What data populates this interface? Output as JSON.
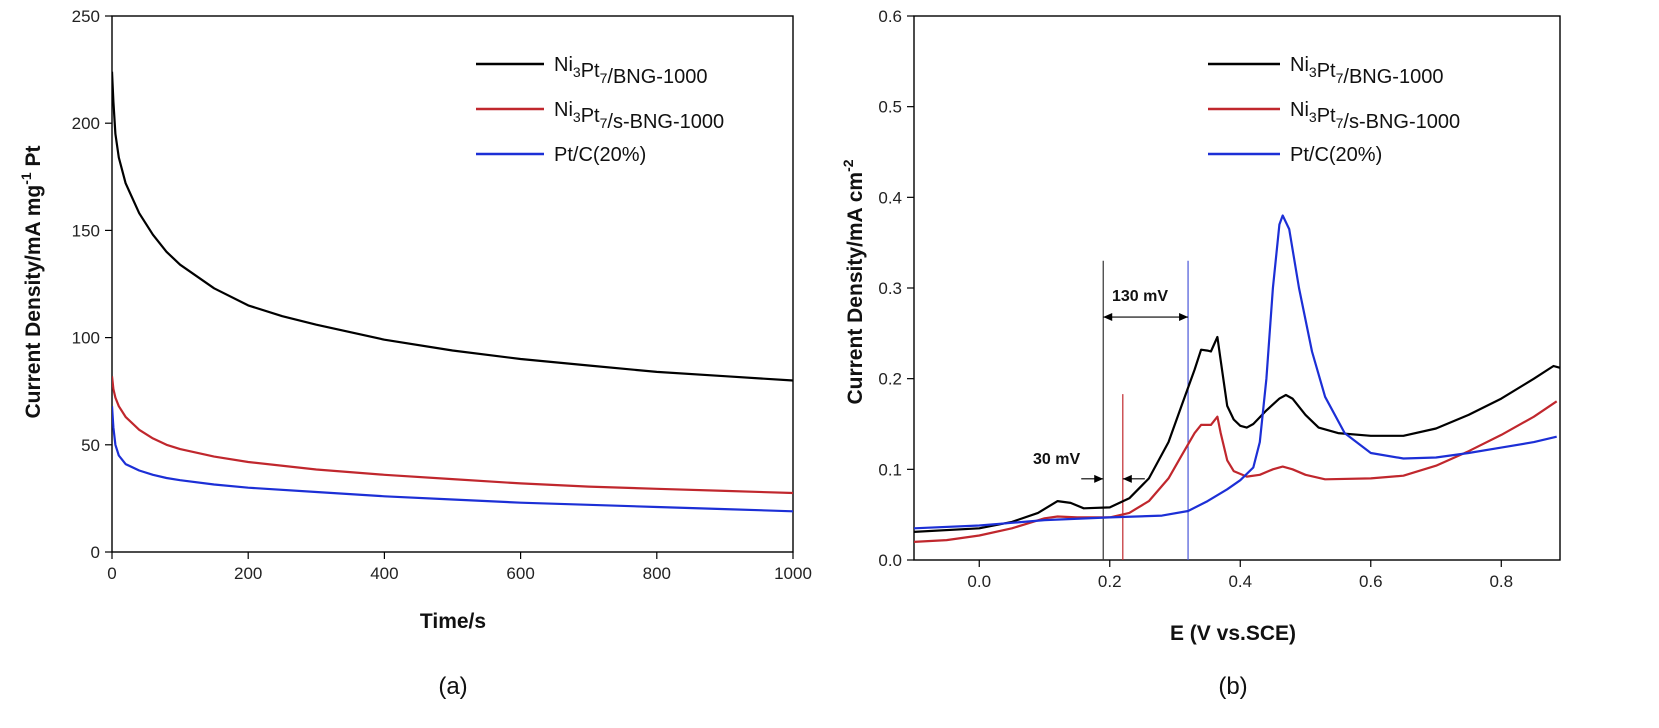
{
  "chart_data": [
    {
      "panel_label": "(a)",
      "type": "line",
      "xlabel": "Time/s",
      "ylabel": "Current Density/mA mg",
      "ylabel_sup": "-1",
      "ylabel_tail": " Pt",
      "xlim": [
        0,
        1000
      ],
      "ylim": [
        0,
        250
      ],
      "xticks": [
        0,
        200,
        400,
        600,
        800,
        1000
      ],
      "yticks": [
        0,
        50,
        100,
        150,
        200,
        250
      ],
      "grid": false,
      "legend_position": "top-right",
      "series": [
        {
          "name": "Ni3Pt7/BNG-1000",
          "label_parts": [
            [
              "Ni",
              ""
            ],
            [
              "3",
              "sub"
            ],
            [
              "Pt",
              ""
            ],
            [
              "7",
              "sub"
            ],
            [
              "/BNG-1000",
              ""
            ]
          ],
          "color": "#000000",
          "points": [
            [
              0,
              224
            ],
            [
              2,
              210
            ],
            [
              5,
              195
            ],
            [
              10,
              184
            ],
            [
              20,
              172
            ],
            [
              40,
              158
            ],
            [
              60,
              148
            ],
            [
              80,
              140
            ],
            [
              100,
              134
            ],
            [
              150,
              123
            ],
            [
              200,
              115
            ],
            [
              250,
              110
            ],
            [
              300,
              106
            ],
            [
              400,
              99
            ],
            [
              500,
              94
            ],
            [
              600,
              90
            ],
            [
              700,
              87
            ],
            [
              800,
              84
            ],
            [
              900,
              82
            ],
            [
              1000,
              80
            ]
          ]
        },
        {
          "name": "Ni3Pt7/s-BNG-1000",
          "label_parts": [
            [
              "Ni",
              ""
            ],
            [
              "3",
              "sub"
            ],
            [
              "Pt",
              ""
            ],
            [
              "7",
              "sub"
            ],
            [
              "/s-BNG-1000",
              ""
            ]
          ],
          "color": "#c0272d",
          "points": [
            [
              0,
              82
            ],
            [
              2,
              76
            ],
            [
              5,
              72
            ],
            [
              10,
              68
            ],
            [
              20,
              63
            ],
            [
              40,
              57
            ],
            [
              60,
              53
            ],
            [
              80,
              50
            ],
            [
              100,
              48
            ],
            [
              150,
              44.5
            ],
            [
              200,
              42
            ],
            [
              300,
              38.5
            ],
            [
              400,
              36
            ],
            [
              500,
              34
            ],
            [
              600,
              32
            ],
            [
              700,
              30.5
            ],
            [
              800,
              29.5
            ],
            [
              900,
              28.5
            ],
            [
              1000,
              27.5
            ]
          ]
        },
        {
          "name": "Pt/C(20%)",
          "label_parts": [
            [
              "Pt/C(20%)",
              ""
            ]
          ],
          "color": "#1c2fd6",
          "points": [
            [
              0,
              68
            ],
            [
              2,
              58
            ],
            [
              5,
              50
            ],
            [
              10,
              45
            ],
            [
              20,
              41
            ],
            [
              40,
              38
            ],
            [
              60,
              36
            ],
            [
              80,
              34.5
            ],
            [
              100,
              33.5
            ],
            [
              150,
              31.5
            ],
            [
              200,
              30
            ],
            [
              300,
              28
            ],
            [
              400,
              26
            ],
            [
              500,
              24.5
            ],
            [
              600,
              23
            ],
            [
              700,
              22
            ],
            [
              800,
              21
            ],
            [
              900,
              20
            ],
            [
              1000,
              19
            ]
          ]
        }
      ]
    },
    {
      "panel_label": "(b)",
      "type": "line",
      "xlabel": "E (V vs.SCE)",
      "ylabel": "Current Density/mA cm",
      "ylabel_sup": "-2",
      "ylabel_tail": "",
      "xlim": [
        -0.1,
        0.89
      ],
      "ylim": [
        0,
        0.6
      ],
      "xticks": [
        0.0,
        0.2,
        0.4,
        0.6,
        0.8
      ],
      "xtick_labels": [
        "0.0",
        "0.2",
        "0.4",
        "0.6",
        "0.8"
      ],
      "yticks": [
        0.0,
        0.1,
        0.2,
        0.3,
        0.4,
        0.5,
        0.6
      ],
      "ytick_labels": [
        "0.0",
        "0.1",
        "0.2",
        "0.3",
        "0.4",
        "0.5",
        "0.6"
      ],
      "grid": false,
      "legend_position": "top-right",
      "series": [
        {
          "name": "Ni3Pt7/BNG-1000",
          "label_parts": [
            [
              "Ni",
              ""
            ],
            [
              "3",
              "sub"
            ],
            [
              "Pt",
              ""
            ],
            [
              "7",
              "sub"
            ],
            [
              "/BNG-1000",
              ""
            ]
          ],
          "color": "#000000",
          "points": [
            [
              -0.1,
              0.031
            ],
            [
              0.0,
              0.035
            ],
            [
              0.05,
              0.042
            ],
            [
              0.09,
              0.052
            ],
            [
              0.12,
              0.065
            ],
            [
              0.14,
              0.063
            ],
            [
              0.16,
              0.057
            ],
            [
              0.2,
              0.058
            ],
            [
              0.23,
              0.068
            ],
            [
              0.26,
              0.09
            ],
            [
              0.29,
              0.13
            ],
            [
              0.31,
              0.17
            ],
            [
              0.33,
              0.21
            ],
            [
              0.34,
              0.232
            ],
            [
              0.35,
              0.231
            ],
            [
              0.355,
              0.23
            ],
            [
              0.365,
              0.246
            ],
            [
              0.37,
              0.22
            ],
            [
              0.38,
              0.17
            ],
            [
              0.39,
              0.155
            ],
            [
              0.4,
              0.148
            ],
            [
              0.41,
              0.146
            ],
            [
              0.42,
              0.15
            ],
            [
              0.44,
              0.165
            ],
            [
              0.46,
              0.178
            ],
            [
              0.47,
              0.182
            ],
            [
              0.48,
              0.178
            ],
            [
              0.5,
              0.16
            ],
            [
              0.52,
              0.146
            ],
            [
              0.55,
              0.14
            ],
            [
              0.6,
              0.137
            ],
            [
              0.65,
              0.137
            ],
            [
              0.7,
              0.145
            ],
            [
              0.75,
              0.16
            ],
            [
              0.8,
              0.178
            ],
            [
              0.85,
              0.2
            ],
            [
              0.88,
              0.214
            ],
            [
              0.89,
              0.212
            ]
          ]
        },
        {
          "name": "Ni3Pt7/s-BNG-1000",
          "label_parts": [
            [
              "Ni",
              ""
            ],
            [
              "3",
              "sub"
            ],
            [
              "Pt",
              ""
            ],
            [
              "7",
              "sub"
            ],
            [
              "/s-BNG-1000",
              ""
            ]
          ],
          "color": "#c0272d",
          "points": [
            [
              -0.1,
              0.02
            ],
            [
              -0.05,
              0.022
            ],
            [
              0.0,
              0.027
            ],
            [
              0.05,
              0.035
            ],
            [
              0.1,
              0.046
            ],
            [
              0.12,
              0.048
            ],
            [
              0.15,
              0.047
            ],
            [
              0.2,
              0.047
            ],
            [
              0.23,
              0.052
            ],
            [
              0.26,
              0.065
            ],
            [
              0.29,
              0.09
            ],
            [
              0.31,
              0.115
            ],
            [
              0.33,
              0.14
            ],
            [
              0.34,
              0.149
            ],
            [
              0.355,
              0.149
            ],
            [
              0.365,
              0.158
            ],
            [
              0.37,
              0.14
            ],
            [
              0.38,
              0.11
            ],
            [
              0.39,
              0.098
            ],
            [
              0.41,
              0.092
            ],
            [
              0.43,
              0.094
            ],
            [
              0.45,
              0.1
            ],
            [
              0.465,
              0.103
            ],
            [
              0.48,
              0.1
            ],
            [
              0.5,
              0.094
            ],
            [
              0.53,
              0.089
            ],
            [
              0.6,
              0.09
            ],
            [
              0.65,
              0.093
            ],
            [
              0.7,
              0.104
            ],
            [
              0.75,
              0.12
            ],
            [
              0.8,
              0.138
            ],
            [
              0.85,
              0.158
            ],
            [
              0.885,
              0.175
            ]
          ]
        },
        {
          "name": "Pt/C(20%)",
          "label_parts": [
            [
              "Pt/C(20%)",
              ""
            ]
          ],
          "color": "#1c2fd6",
          "points": [
            [
              -0.1,
              0.035
            ],
            [
              0.0,
              0.038
            ],
            [
              0.05,
              0.041
            ],
            [
              0.1,
              0.044
            ],
            [
              0.2,
              0.047
            ],
            [
              0.28,
              0.049
            ],
            [
              0.32,
              0.054
            ],
            [
              0.35,
              0.065
            ],
            [
              0.38,
              0.078
            ],
            [
              0.4,
              0.088
            ],
            [
              0.42,
              0.102
            ],
            [
              0.43,
              0.13
            ],
            [
              0.44,
              0.2
            ],
            [
              0.45,
              0.3
            ],
            [
              0.46,
              0.37
            ],
            [
              0.465,
              0.38
            ],
            [
              0.475,
              0.365
            ],
            [
              0.49,
              0.3
            ],
            [
              0.51,
              0.23
            ],
            [
              0.53,
              0.18
            ],
            [
              0.56,
              0.14
            ],
            [
              0.6,
              0.118
            ],
            [
              0.65,
              0.112
            ],
            [
              0.7,
              0.113
            ],
            [
              0.75,
              0.118
            ],
            [
              0.8,
              0.124
            ],
            [
              0.85,
              0.13
            ],
            [
              0.885,
              0.136
            ]
          ]
        }
      ],
      "annotations": {
        "label_130": "130 mV",
        "label_30": "30 mV",
        "vlines": [
          {
            "x": 0.19,
            "color": "#333333"
          },
          {
            "x": 0.22,
            "color": "#c0272d"
          },
          {
            "x": 0.32,
            "color": "#4a57d8"
          }
        ],
        "range_130": [
          0.19,
          0.32
        ],
        "range_30": [
          0.19,
          0.22
        ]
      }
    }
  ]
}
